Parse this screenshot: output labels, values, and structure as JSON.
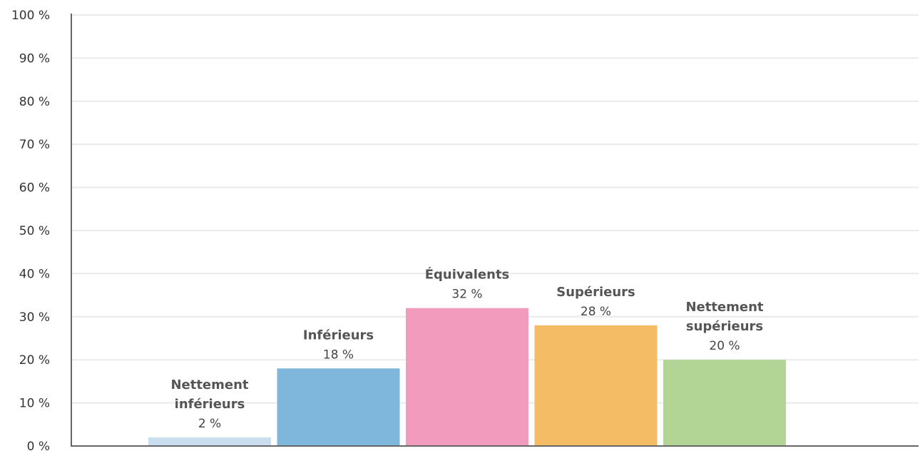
{
  "chart_data": {
    "type": "bar",
    "title": "",
    "xlabel": "",
    "ylabel": "",
    "ylim": [
      0,
      100
    ],
    "grid": true,
    "y_ticks": [
      "0 %",
      "10 %",
      "20 %",
      "30 %",
      "40 %",
      "50 %",
      "60 %",
      "70 %",
      "80 %",
      "90 %",
      "100 %"
    ],
    "categories": [
      [
        "Nettement",
        "inférieurs"
      ],
      [
        "Inférieurs"
      ],
      [
        "Équivalents"
      ],
      [
        "Supérieurs"
      ],
      [
        "Nettement",
        "supérieurs"
      ]
    ],
    "values": [
      2,
      18,
      32,
      28,
      20
    ],
    "value_labels": [
      "2 %",
      "18 %",
      "32 %",
      "28 %",
      "20 %"
    ],
    "colors": [
      "#c9dff0",
      "#7fb6dc",
      "#f29bbd",
      "#f5bc66",
      "#b2d494"
    ]
  }
}
